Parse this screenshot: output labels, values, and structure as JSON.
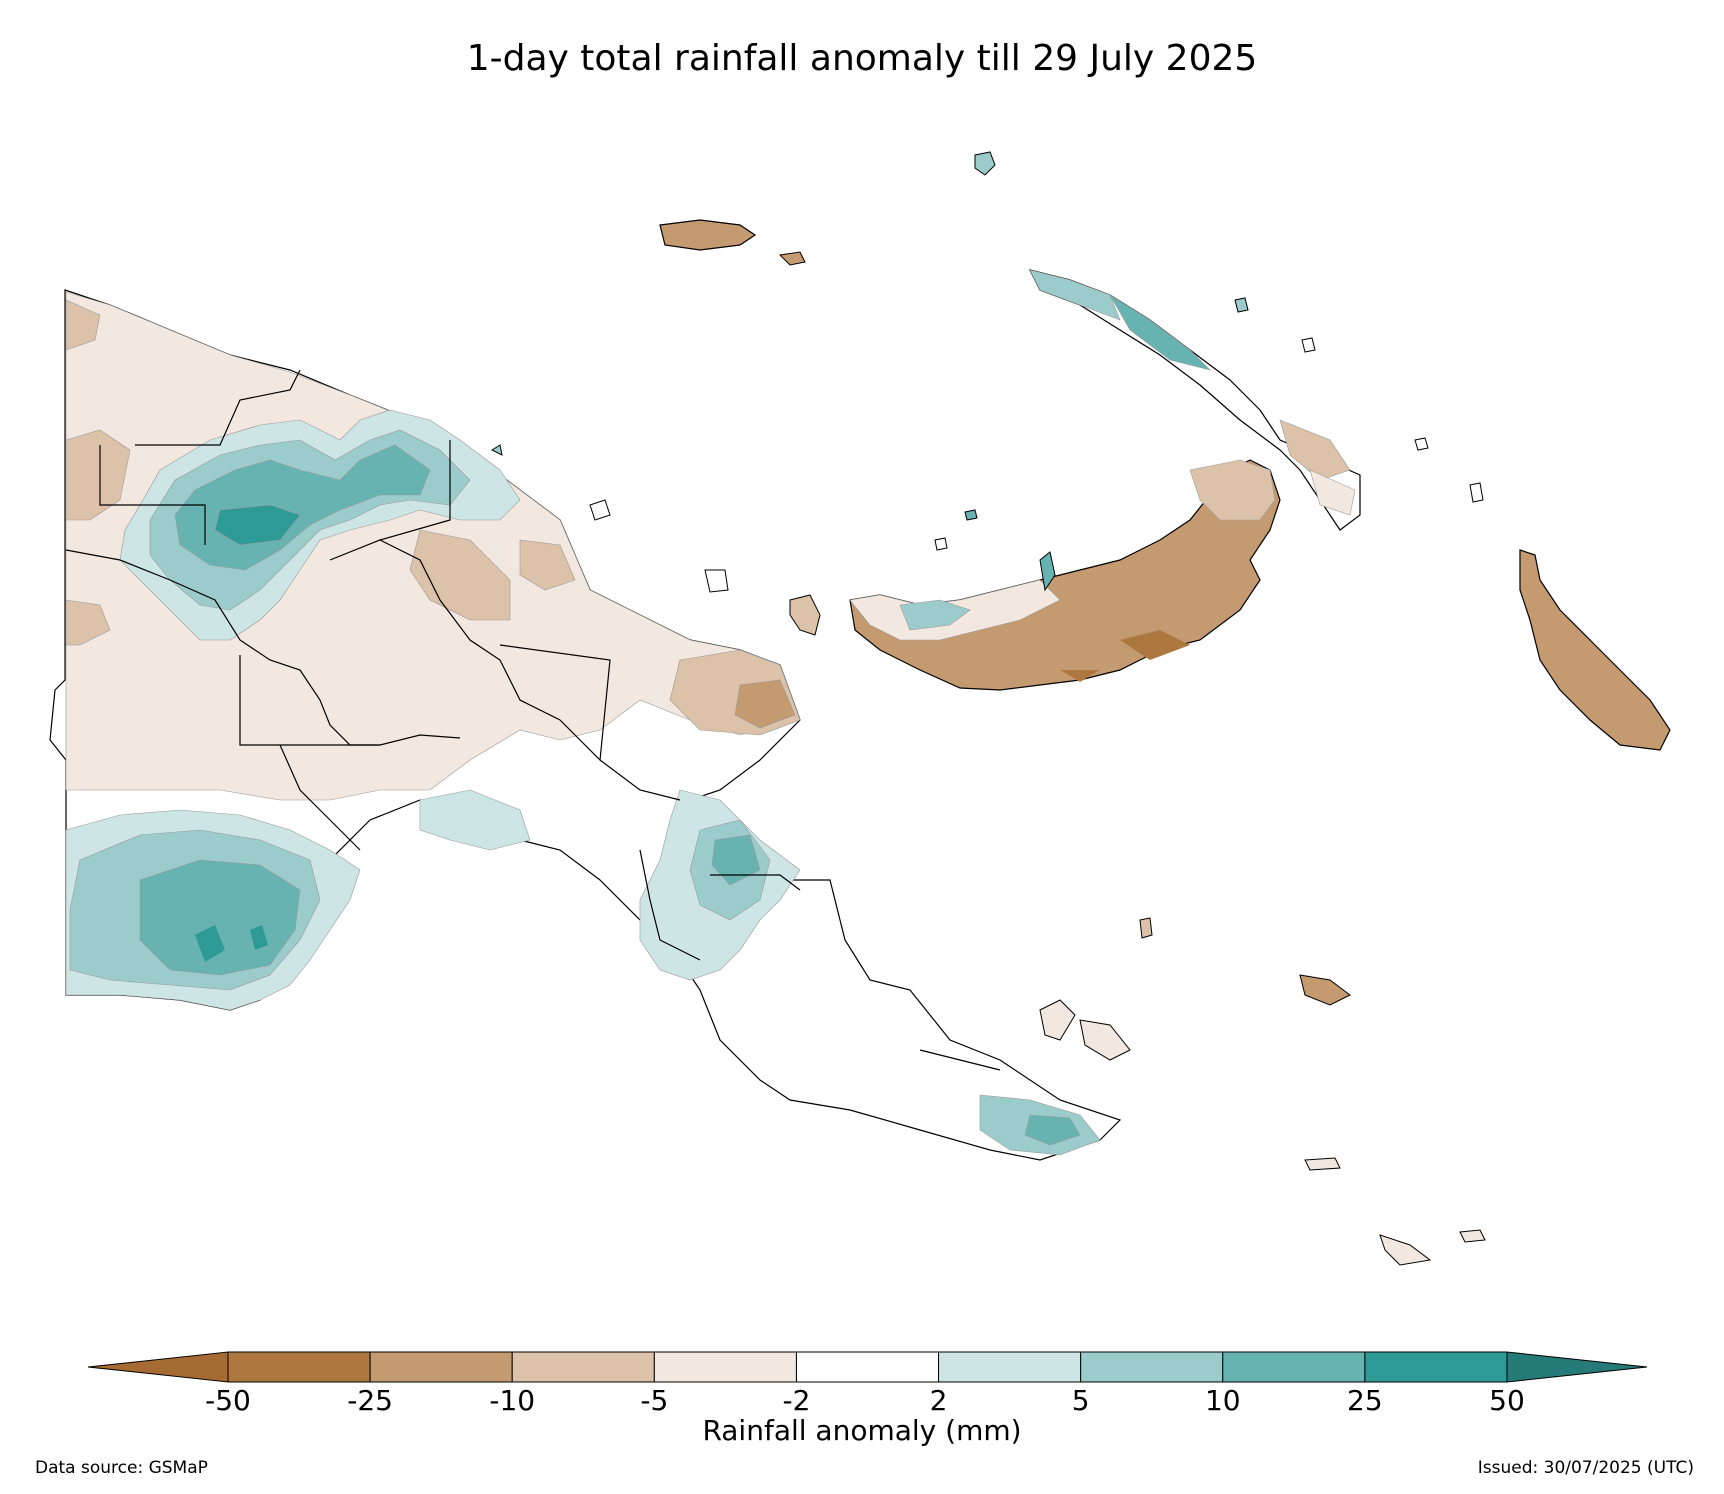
{
  "title": "1-day total rainfall anomaly till 29 July 2025",
  "colorbar": {
    "title": "Rainfall anomaly (mm)",
    "ticks": [
      "-50",
      "-25",
      "-10",
      "-5",
      "-2",
      "2",
      "5",
      "10",
      "25",
      "50"
    ],
    "colors": [
      "#a66b33",
      "#ad7840",
      "#c49a70",
      "#dbc2a8",
      "#f2e8e0",
      "#ffffff",
      "#cde6e5",
      "#9bcccb",
      "#66b3b1",
      "#2e9a96",
      "#267a78"
    ]
  },
  "footer": {
    "source": "Data source: GSMaP",
    "issued": "Issued: 30/07/2025 (UTC)"
  }
}
